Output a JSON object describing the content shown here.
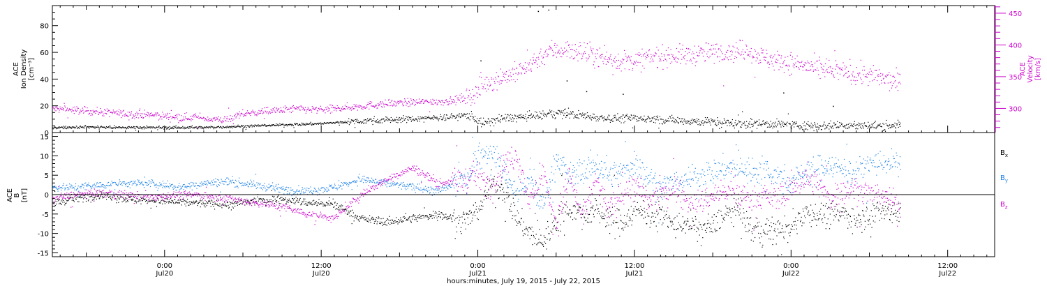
{
  "figure": {
    "xaxis_title": "hours:minutes, July 19, 2015 - July 22, 2015",
    "x_ticks": [
      {
        "time": "Jul 20 00:00",
        "hour": 24,
        "line1": "0:00",
        "line2": "Jul20"
      },
      {
        "time": "Jul 20 12:00",
        "hour": 36,
        "line1": "12:00",
        "line2": "Jul20"
      },
      {
        "time": "Jul 21 00:00",
        "hour": 48,
        "line1": "0:00",
        "line2": "Jul21"
      },
      {
        "time": "Jul 21 12:00",
        "hour": 60,
        "line1": "12:00",
        "line2": "Jul21"
      },
      {
        "time": "Jul 22 00:00",
        "hour": 72,
        "line1": "0:00",
        "line2": "Jul22"
      },
      {
        "time": "Jul 22 12:00",
        "hour": 84,
        "line1": "12:00",
        "line2": "Jul22"
      }
    ],
    "x_range_hours": [
      15.4,
      87.6
    ]
  },
  "chart_data": [
    {
      "type": "scatter",
      "panel": "top",
      "ylabel_left": [
        "ACE",
        "Ion Density",
        "[cm⁻³]"
      ],
      "ylabel_right": [
        "ACE",
        "Velocity",
        "[km/s]"
      ],
      "ylim_left": [
        0,
        95
      ],
      "yticks_left": [
        0,
        20,
        40,
        60,
        80
      ],
      "ylim_right": [
        262,
        462
      ],
      "yticks_right": [
        300,
        350,
        400,
        450
      ],
      "colors": {
        "density": "#000000",
        "velocity": "#cc00cc"
      },
      "series": [
        {
          "name": "",
          "axis": "left",
          "color": "#000000",
          "x_hours": [
            15.4,
            18,
            21,
            24,
            27,
            30,
            33,
            36,
            39,
            42,
            44,
            46,
            47,
            47.5,
            48,
            48.5,
            49,
            50,
            51.5,
            53,
            54,
            56,
            58,
            60,
            62,
            64,
            66,
            68,
            70,
            72,
            74,
            76,
            78,
            80.4
          ],
          "values": [
            4,
            4.5,
            4,
            4,
            4,
            5,
            6,
            7,
            9,
            10,
            11,
            12,
            13,
            13,
            9,
            7,
            9,
            11,
            12,
            13,
            15,
            13,
            11,
            11,
            10,
            9,
            8,
            7,
            7,
            6,
            5,
            6,
            5,
            6
          ]
        },
        {
          "name": "",
          "axis": "right",
          "color": "#cc00cc",
          "x_hours": [
            15.4,
            17,
            19,
            21,
            23,
            25,
            27,
            28.5,
            30,
            32,
            34,
            36,
            38,
            40,
            42,
            44,
            46,
            47,
            48,
            48.5,
            49.5,
            51,
            52.5,
            53.5,
            55,
            56.5,
            58,
            59,
            60,
            61,
            62.5,
            64,
            65.5,
            67,
            68.5,
            70,
            71,
            72,
            73,
            74,
            75.5,
            77,
            78.5,
            80.4
          ],
          "values": [
            300,
            298,
            295,
            292,
            290,
            287,
            285,
            282,
            292,
            296,
            300,
            298,
            302,
            306,
            309,
            311,
            312,
            318,
            326,
            340,
            348,
            357,
            378,
            392,
            393,
            387,
            378,
            375,
            375,
            380,
            384,
            384,
            388,
            390,
            392,
            380,
            375,
            372,
            368,
            362,
            360,
            355,
            350,
            340
          ]
        }
      ],
      "outlier_points": [
        {
          "x_hours": 52.6,
          "value": 91
        },
        {
          "x_hours": 53.4,
          "value": 92
        },
        {
          "x_hours": 48.2,
          "value": 54
        },
        {
          "x_hours": 54.8,
          "value": 39
        },
        {
          "x_hours": 56.3,
          "value": 31
        },
        {
          "x_hours": 59.1,
          "value": 29
        },
        {
          "x_hours": 71.4,
          "value": 30
        },
        {
          "x_hours": 75.2,
          "value": 20
        }
      ]
    },
    {
      "type": "scatter",
      "panel": "bottom",
      "ylabel_left": [
        "ACE",
        "B",
        "[nT]"
      ],
      "ylim": [
        -16,
        16
      ],
      "yticks": [
        -15,
        -10,
        -5,
        0,
        5,
        10,
        15
      ],
      "zero_line": true,
      "series": [
        {
          "name": "B",
          "sub": "x",
          "color": "#000000",
          "x_hours": [
            15.4,
            17,
            19,
            21,
            23,
            25,
            27,
            29,
            31,
            33,
            35,
            37,
            39,
            41,
            43,
            45,
            47,
            48,
            49,
            50,
            51,
            52,
            53,
            54,
            55,
            56,
            57,
            58,
            59,
            60,
            61,
            62,
            63,
            64,
            65,
            66,
            67,
            68,
            69,
            70,
            71,
            72,
            73,
            74,
            75,
            76,
            77,
            78,
            79,
            80.4
          ],
          "values": [
            -2,
            -1,
            0,
            -1,
            -1.5,
            -1.8,
            -2.2,
            -2.5,
            -1.5,
            -1,
            -2,
            -2.5,
            -6,
            -7,
            -6,
            -5,
            -7,
            -4,
            3,
            1,
            -6,
            -10,
            -12,
            -6,
            -3,
            -5,
            -4,
            -6,
            -7,
            -4,
            -5,
            -5,
            -8,
            -7,
            -9,
            -8,
            -5,
            -4,
            -9,
            -9.5,
            -9,
            -9,
            -4,
            -5,
            -5,
            -5,
            -6,
            -5,
            -4,
            -4
          ]
        },
        {
          "name": "B",
          "sub": "y",
          "color": "#1e82e6",
          "x_hours": [
            15.4,
            17,
            19,
            21,
            23,
            25,
            27,
            29,
            31,
            33,
            35,
            37,
            39,
            41,
            43,
            45,
            47,
            48,
            49,
            50,
            51,
            52,
            53,
            54,
            55,
            56,
            57,
            58,
            59,
            60,
            61,
            62,
            63,
            64,
            65,
            66,
            67,
            68,
            69,
            70,
            71,
            72,
            73,
            74,
            75,
            76,
            77,
            78,
            79,
            80.4
          ],
          "values": [
            2,
            2,
            2.5,
            3,
            3,
            2,
            3,
            3.5,
            2.5,
            1.5,
            1,
            2,
            4,
            3,
            2,
            1,
            4,
            10,
            12,
            6,
            0,
            4,
            -3,
            10,
            5,
            6,
            8,
            5,
            6,
            8,
            5,
            2,
            3,
            4,
            5,
            6,
            7,
            7,
            6,
            7,
            5,
            3,
            6,
            7,
            8,
            6,
            6,
            8,
            8.5,
            8
          ]
        },
        {
          "name": "B",
          "sub": "z",
          "color": "#cc00cc",
          "x_hours": [
            15.4,
            17,
            19,
            21,
            23,
            25,
            27,
            29,
            31,
            33,
            35,
            37,
            39,
            41,
            43,
            45,
            47,
            48,
            49,
            50,
            51,
            52,
            53,
            54,
            55,
            56,
            57,
            58,
            59,
            60,
            61,
            62,
            63,
            64,
            65,
            66,
            67,
            68,
            69,
            70,
            71,
            72,
            73,
            74,
            75,
            76,
            77,
            78,
            79,
            80.4
          ],
          "values": [
            -1,
            0,
            0.5,
            0,
            -0.5,
            0,
            0,
            -1,
            -2,
            -3,
            -5,
            -6,
            0,
            4,
            7,
            3,
            4,
            5,
            2,
            8,
            10,
            -2,
            6,
            -8,
            5,
            -6,
            4,
            -4,
            0,
            3,
            -2,
            0,
            2,
            -1,
            -2,
            0,
            1,
            0,
            -1,
            0,
            -1,
            2,
            4,
            3,
            -1,
            1,
            2,
            0,
            0,
            -3
          ]
        }
      ]
    }
  ]
}
